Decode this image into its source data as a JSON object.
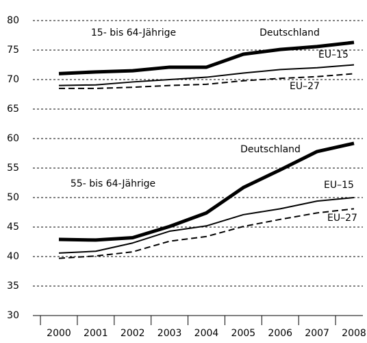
{
  "chart_data": {
    "type": "line",
    "categories": [
      "2000",
      "2001",
      "2002",
      "2003",
      "2004",
      "2005",
      "2006",
      "2007",
      "2008"
    ],
    "ylim": [
      30,
      80
    ],
    "yticks": [
      30,
      35,
      40,
      45,
      50,
      55,
      60,
      65,
      70,
      75,
      80
    ],
    "grid": true,
    "annotations": [
      "15- bis 64-Jährige",
      "55- bis 64-Jährige"
    ],
    "series": [
      {
        "name": "Deutschland",
        "color": "#000000",
        "style": "thick",
        "values": [
          71.0,
          71.3,
          71.5,
          72.1,
          72.1,
          74.3,
          75.1,
          75.6,
          76.3
        ]
      },
      {
        "name": "EU–15",
        "color": "#000000",
        "style": "thin",
        "values": [
          69.0,
          69.1,
          69.6,
          70.0,
          70.4,
          71.1,
          71.7,
          72.0,
          72.5
        ]
      },
      {
        "name": "EU–27",
        "color": "#000000",
        "style": "dashed",
        "values": [
          68.5,
          68.5,
          68.7,
          69.0,
          69.2,
          69.8,
          70.2,
          70.5,
          71.0
        ]
      },
      {
        "name": "Deutschland",
        "color": "#000000",
        "style": "thick",
        "values": [
          42.9,
          42.8,
          43.2,
          45.1,
          47.4,
          51.7,
          54.7,
          57.8,
          59.2
        ]
      },
      {
        "name": "EU–15",
        "color": "#000000",
        "style": "thin",
        "values": [
          40.6,
          40.9,
          42.3,
          44.3,
          45.2,
          47.1,
          48.1,
          49.4,
          50.0
        ]
      },
      {
        "name": "EU–27",
        "color": "#000000",
        "style": "dashed",
        "values": [
          39.7,
          40.1,
          40.8,
          42.6,
          43.4,
          45.1,
          46.3,
          47.4,
          48.1
        ]
      }
    ]
  }
}
